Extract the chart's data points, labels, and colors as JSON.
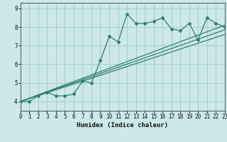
{
  "title": "",
  "xlabel": "Humidex (Indice chaleur)",
  "bg_color": "#cce8e8",
  "grid_color": "#aacccc",
  "line_color": "#2e7d72",
  "xlim": [
    0,
    23
  ],
  "ylim": [
    3.5,
    9.3
  ],
  "xticks": [
    0,
    1,
    2,
    3,
    4,
    5,
    6,
    7,
    8,
    9,
    10,
    11,
    12,
    13,
    14,
    15,
    16,
    17,
    18,
    19,
    20,
    21,
    22,
    23
  ],
  "yticks": [
    4,
    5,
    6,
    7,
    8,
    9
  ],
  "series1_x": [
    0,
    1,
    2,
    3,
    4,
    5,
    6,
    7,
    8,
    9,
    10,
    11,
    12,
    13,
    14,
    15,
    16,
    17,
    18,
    19,
    20,
    21,
    22,
    23
  ],
  "series1_y": [
    4.0,
    4.0,
    4.3,
    4.5,
    4.3,
    4.3,
    4.4,
    5.1,
    5.0,
    6.2,
    7.5,
    7.2,
    8.7,
    8.2,
    8.2,
    8.3,
    8.5,
    7.9,
    7.8,
    8.2,
    7.3,
    8.5,
    8.2,
    8.0
  ],
  "trend1_x": [
    0,
    23
  ],
  "trend1_y": [
    4.0,
    8.1
  ],
  "trend2_x": [
    0,
    23
  ],
  "trend2_y": [
    4.0,
    7.85
  ],
  "trend3_x": [
    0,
    23
  ],
  "trend3_y": [
    4.0,
    7.6
  ]
}
